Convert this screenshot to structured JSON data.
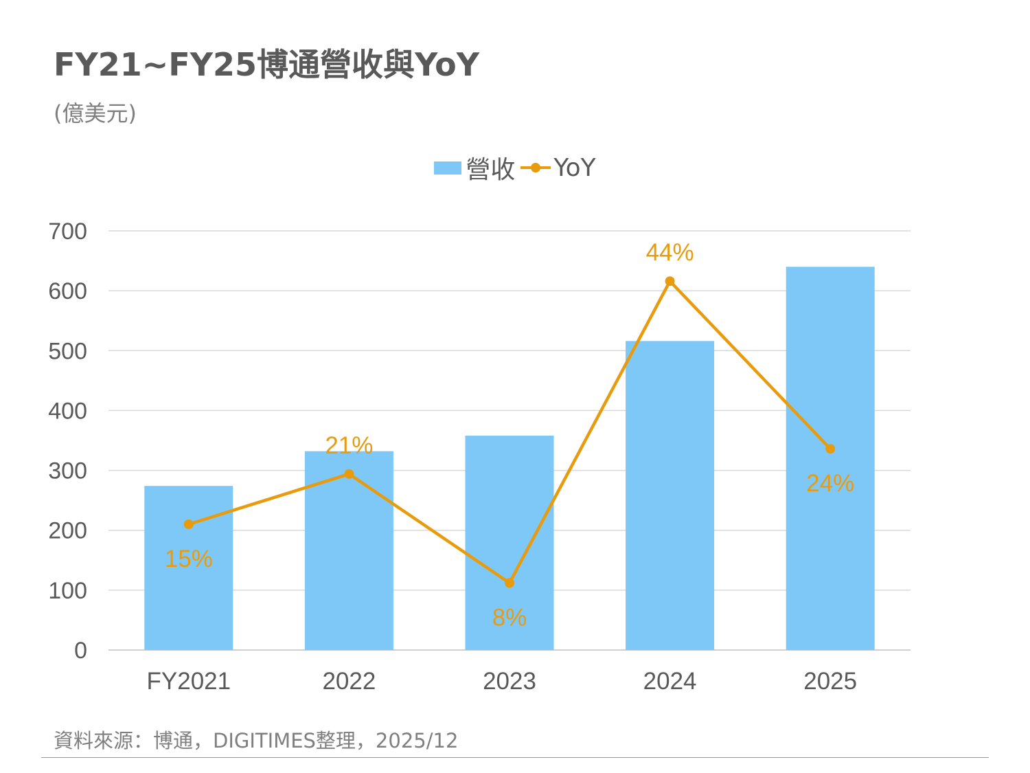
{
  "title": "FY21~FY25博通營收與YoY",
  "unit": "(億美元)",
  "source": "資料來源：博通，DIGITIMES整理，2025/12",
  "colors": {
    "bar": "#7ec8f8",
    "line": "#e99b0e",
    "label": "#e99b0e",
    "axis_text": "#595959",
    "grid": "#d9d9d9"
  },
  "chart_data": {
    "type": "bar",
    "title": "FY21~FY25博通營收與YoY",
    "ylabel": "(億美元)",
    "xlabel": "",
    "categories": [
      "FY2021",
      "2022",
      "2023",
      "2024",
      "2025"
    ],
    "ylim": [
      0,
      700
    ],
    "yticks": [
      "0",
      "100",
      "200",
      "300",
      "400",
      "500",
      "600",
      "700"
    ],
    "legend_position": "top-center",
    "series": [
      {
        "name": "營收",
        "type": "bar",
        "values": [
          274,
          332,
          358,
          516,
          640
        ]
      },
      {
        "name": "YoY",
        "type": "line",
        "percent_values": [
          15,
          21,
          8,
          44,
          24
        ],
        "labels": [
          "15%",
          "21%",
          "8%",
          "44%",
          "24%"
        ],
        "label_positions": [
          "below",
          "above",
          "below",
          "above",
          "below"
        ]
      }
    ]
  }
}
